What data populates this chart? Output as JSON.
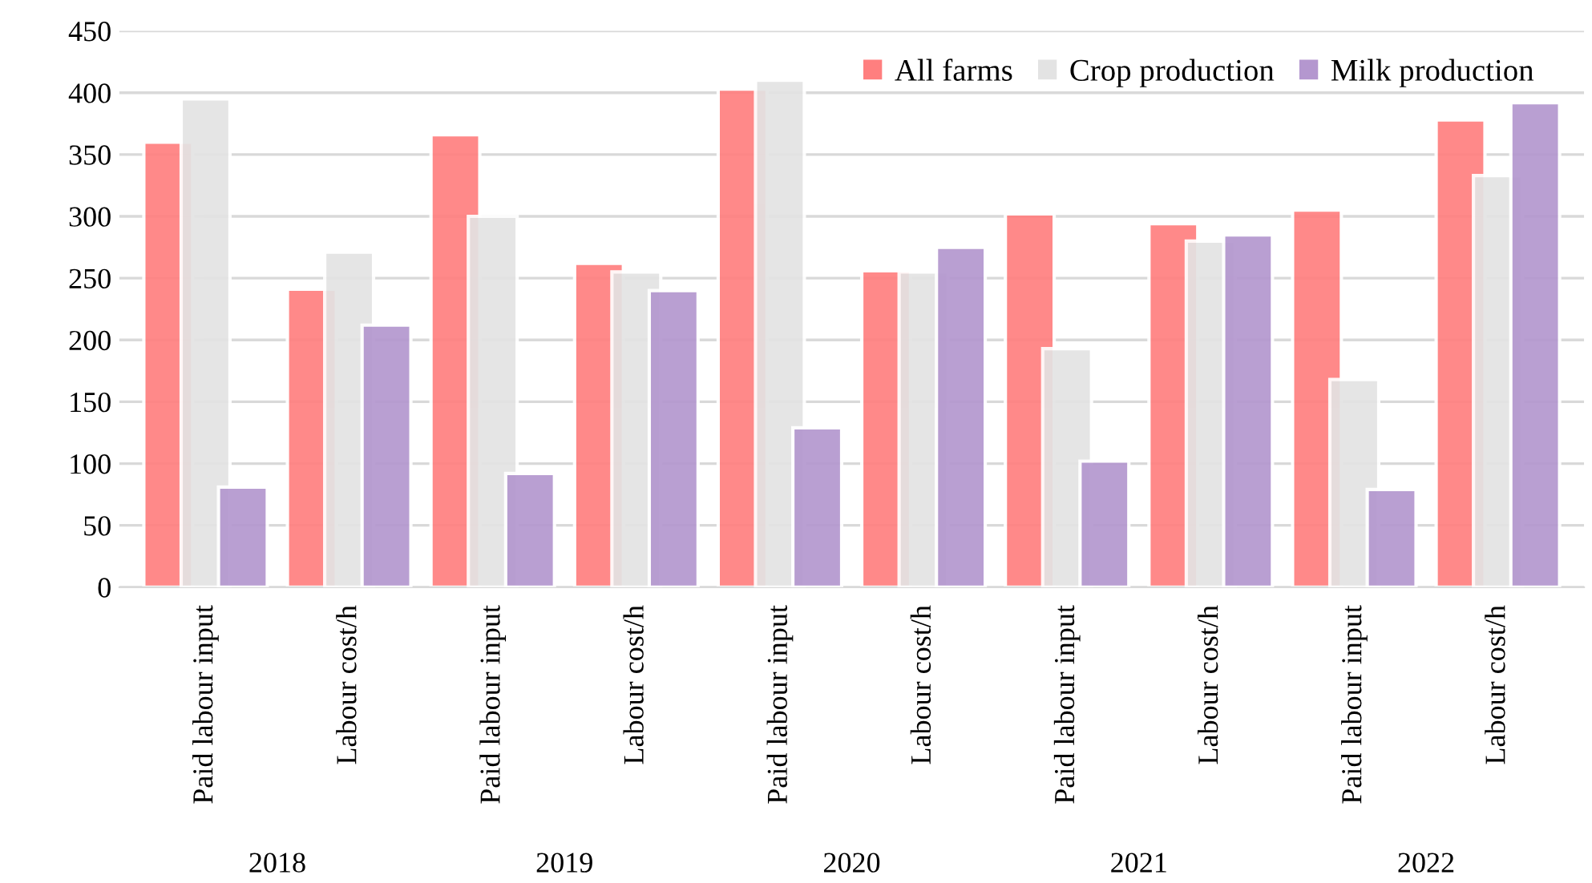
{
  "chart_data": {
    "type": "bar",
    "categories": [
      "Paid labour input",
      "Labour cost/h",
      "Paid labour input",
      "Labour cost/h",
      "Paid labour input",
      "Labour cost/h",
      "Paid labour input",
      "Labour cost/h",
      "Paid labour input",
      "Labour cost/h"
    ],
    "series": [
      {
        "name": "All farms",
        "color": "#ff7f7f",
        "values": [
          360,
          241,
          366,
          262,
          403,
          256,
          302,
          294,
          305,
          378
        ]
      },
      {
        "name": "Crop production",
        "color": "#e3e3e3",
        "values": [
          395,
          271,
          300,
          255,
          410,
          255,
          193,
          280,
          168,
          333
        ]
      },
      {
        "name": "Milk production",
        "color": "#b497cf",
        "values": [
          81,
          212,
          92,
          240,
          129,
          275,
          102,
          285,
          79,
          392
        ]
      }
    ],
    "annotations": [
      "2018",
      "2019",
      "2020",
      "2021",
      "2022"
    ],
    "ylim": [
      0,
      450
    ],
    "yticks": [
      0,
      50,
      100,
      150,
      200,
      250,
      300,
      350,
      400,
      450
    ],
    "grid": "y",
    "legend": "top right"
  }
}
